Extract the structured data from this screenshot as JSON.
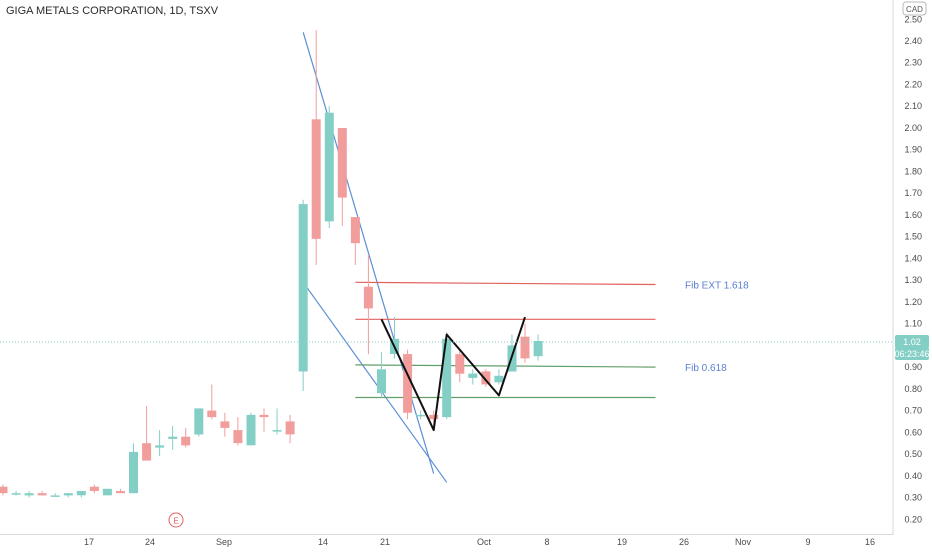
{
  "header": {
    "title": "GIGA METALS CORPORATION, 1D, TSXV",
    "currency": "CAD"
  },
  "badges": {
    "last_price": "1.02",
    "countdown": "06:23:46",
    "earnings": "E"
  },
  "colors": {
    "up": "#84cfc5",
    "down": "#f19d9c",
    "trend_blue": "#5b8fd6",
    "resistance_red": "#e2615d",
    "support_green": "#62a06a",
    "pattern_black": "#111111"
  },
  "annotations": {
    "fib_ext": "Fib EXT 1.618",
    "fib_618": "Fib 0.618"
  },
  "chart_data": {
    "type": "candlestick",
    "title": "GIGA METALS CORPORATION, 1D, TSXV",
    "ylim": [
      0.15,
      2.55
    ],
    "grid": false,
    "y_ticks": [
      "2.50",
      "2.40",
      "2.30",
      "2.20",
      "2.10",
      "2.00",
      "1.90",
      "1.80",
      "1.70",
      "1.60",
      "1.50",
      "1.40",
      "1.30",
      "1.20",
      "1.10",
      "1.00",
      "0.90",
      "0.80",
      "0.70",
      "0.60",
      "0.50",
      "0.40",
      "0.30",
      "0.20"
    ],
    "x_ticks": [
      "17",
      "24",
      "Sep",
      "14",
      "21",
      "Oct",
      "8",
      "19",
      "26",
      "Nov",
      "9",
      "16"
    ],
    "candles": [
      {
        "date": "Aug 13",
        "open": 0.35,
        "high": 0.36,
        "low": 0.31,
        "close": 0.32
      },
      {
        "date": "Aug 14",
        "open": 0.32,
        "high": 0.33,
        "low": 0.31,
        "close": 0.32
      },
      {
        "date": "Aug 15",
        "open": 0.31,
        "high": 0.33,
        "low": 0.3,
        "close": 0.32
      },
      {
        "date": "Aug 16",
        "open": 0.32,
        "high": 0.33,
        "low": 0.31,
        "close": 0.31
      },
      {
        "date": "Aug 19",
        "open": 0.31,
        "high": 0.32,
        "low": 0.31,
        "close": 0.31
      },
      {
        "date": "Aug 20",
        "open": 0.31,
        "high": 0.32,
        "low": 0.3,
        "close": 0.32
      },
      {
        "date": "Aug 21",
        "open": 0.31,
        "high": 0.33,
        "low": 0.3,
        "close": 0.33
      },
      {
        "date": "Aug 22",
        "open": 0.35,
        "high": 0.36,
        "low": 0.32,
        "close": 0.33
      },
      {
        "date": "Aug 23",
        "open": 0.31,
        "high": 0.34,
        "low": 0.31,
        "close": 0.34
      },
      {
        "date": "Aug 26",
        "open": 0.33,
        "high": 0.34,
        "low": 0.32,
        "close": 0.32
      },
      {
        "date": "Aug 27",
        "open": 0.32,
        "high": 0.55,
        "low": 0.32,
        "close": 0.51
      },
      {
        "date": "Aug 28",
        "open": 0.55,
        "high": 0.72,
        "low": 0.47,
        "close": 0.47
      },
      {
        "date": "Aug 29",
        "open": 0.53,
        "high": 0.61,
        "low": 0.49,
        "close": 0.54
      },
      {
        "date": "Aug 30",
        "open": 0.57,
        "high": 0.63,
        "low": 0.52,
        "close": 0.58
      },
      {
        "date": "Sep 3",
        "open": 0.58,
        "high": 0.62,
        "low": 0.53,
        "close": 0.54
      },
      {
        "date": "Sep 4",
        "open": 0.59,
        "high": 0.71,
        "low": 0.58,
        "close": 0.71
      },
      {
        "date": "Sep 5",
        "open": 0.7,
        "high": 0.82,
        "low": 0.66,
        "close": 0.67
      },
      {
        "date": "Sep 6",
        "open": 0.65,
        "high": 0.69,
        "low": 0.58,
        "close": 0.62
      },
      {
        "date": "Sep 9",
        "open": 0.61,
        "high": 0.67,
        "low": 0.54,
        "close": 0.55
      },
      {
        "date": "Sep 10",
        "open": 0.54,
        "high": 0.69,
        "low": 0.54,
        "close": 0.68
      },
      {
        "date": "Sep 11",
        "open": 0.68,
        "high": 0.71,
        "low": 0.6,
        "close": 0.67
      },
      {
        "date": "Sep 12",
        "open": 0.61,
        "high": 0.71,
        "low": 0.59,
        "close": 0.61
      },
      {
        "date": "Sep 13",
        "open": 0.65,
        "high": 0.68,
        "low": 0.55,
        "close": 0.59
      },
      {
        "date": "Sep 16",
        "open": 0.88,
        "high": 1.67,
        "low": 0.79,
        "close": 1.65
      },
      {
        "date": "Sep 17",
        "open": 2.04,
        "high": 2.45,
        "low": 1.37,
        "close": 1.49
      },
      {
        "date": "Sep 18",
        "open": 1.57,
        "high": 2.1,
        "low": 1.54,
        "close": 2.07
      },
      {
        "date": "Sep 19",
        "open": 2.0,
        "high": 2.0,
        "low": 1.55,
        "close": 1.68
      },
      {
        "date": "Sep 20",
        "open": 1.59,
        "high": 1.59,
        "low": 1.37,
        "close": 1.47
      },
      {
        "date": "Sep 23",
        "open": 1.27,
        "high": 1.42,
        "low": 0.96,
        "close": 1.17
      },
      {
        "date": "Sep 24",
        "open": 0.78,
        "high": 0.97,
        "low": 0.76,
        "close": 0.89
      },
      {
        "date": "Sep 25",
        "open": 0.96,
        "high": 1.13,
        "low": 0.94,
        "close": 1.03
      },
      {
        "date": "Sep 26",
        "open": 0.96,
        "high": 0.98,
        "low": 0.66,
        "close": 0.69
      },
      {
        "date": "Sep 27",
        "open": 0.68,
        "high": 0.7,
        "low": 0.66,
        "close": 0.68
      },
      {
        "date": "Sep 30",
        "open": 0.68,
        "high": 0.7,
        "low": 0.61,
        "close": 0.66
      },
      {
        "date": "Oct 1",
        "open": 0.67,
        "high": 1.06,
        "low": 0.66,
        "close": 1.03
      },
      {
        "date": "Oct 2",
        "open": 0.96,
        "high": 0.98,
        "low": 0.83,
        "close": 0.87
      },
      {
        "date": "Oct 3",
        "open": 0.85,
        "high": 0.89,
        "low": 0.82,
        "close": 0.87
      },
      {
        "date": "Oct 4",
        "open": 0.88,
        "high": 0.89,
        "low": 0.81,
        "close": 0.82
      },
      {
        "date": "Oct 7",
        "open": 0.83,
        "high": 0.89,
        "low": 0.82,
        "close": 0.86
      },
      {
        "date": "Oct 8",
        "open": 0.88,
        "high": 1.05,
        "low": 0.88,
        "close": 1.0
      },
      {
        "date": "Oct 9",
        "open": 1.04,
        "high": 1.1,
        "low": 0.92,
        "close": 0.94
      },
      {
        "date": "Oct 10",
        "open": 0.95,
        "high": 1.05,
        "low": 0.93,
        "close": 1.02
      }
    ],
    "lines": [
      {
        "name": "falling-trendline",
        "color": "blue",
        "points": [
          [
            "Sep 16",
            2.44
          ],
          [
            "Sep 30",
            0.41
          ]
        ]
      },
      {
        "name": "lower-trendline",
        "color": "blue",
        "points": [
          [
            "Sep 16",
            1.29
          ],
          [
            "Oct 1",
            0.37
          ]
        ]
      },
      {
        "name": "fib-ext-1618-level",
        "color": "red",
        "points": [
          [
            "Sep 20",
            1.29
          ],
          [
            "Oct 23",
            1.28
          ]
        ]
      },
      {
        "name": "resistance-level",
        "color": "red",
        "points": [
          [
            "Sep 20",
            1.12
          ],
          [
            "Oct 23",
            1.12
          ]
        ]
      },
      {
        "name": "fib-0618-level",
        "color": "green",
        "points": [
          [
            "Sep 20",
            0.91
          ],
          [
            "Oct 23",
            0.9
          ]
        ]
      },
      {
        "name": "support-level",
        "color": "green",
        "points": [
          [
            "Sep 20",
            0.76
          ],
          [
            "Oct 23",
            0.76
          ]
        ]
      },
      {
        "name": "w-pattern",
        "color": "black",
        "points": [
          [
            "Sep 24",
            1.12
          ],
          [
            "Sep 30",
            0.61
          ],
          [
            "Oct 1",
            1.05
          ],
          [
            "Oct 7",
            0.77
          ],
          [
            "Oct 9",
            1.13
          ]
        ]
      }
    ]
  }
}
